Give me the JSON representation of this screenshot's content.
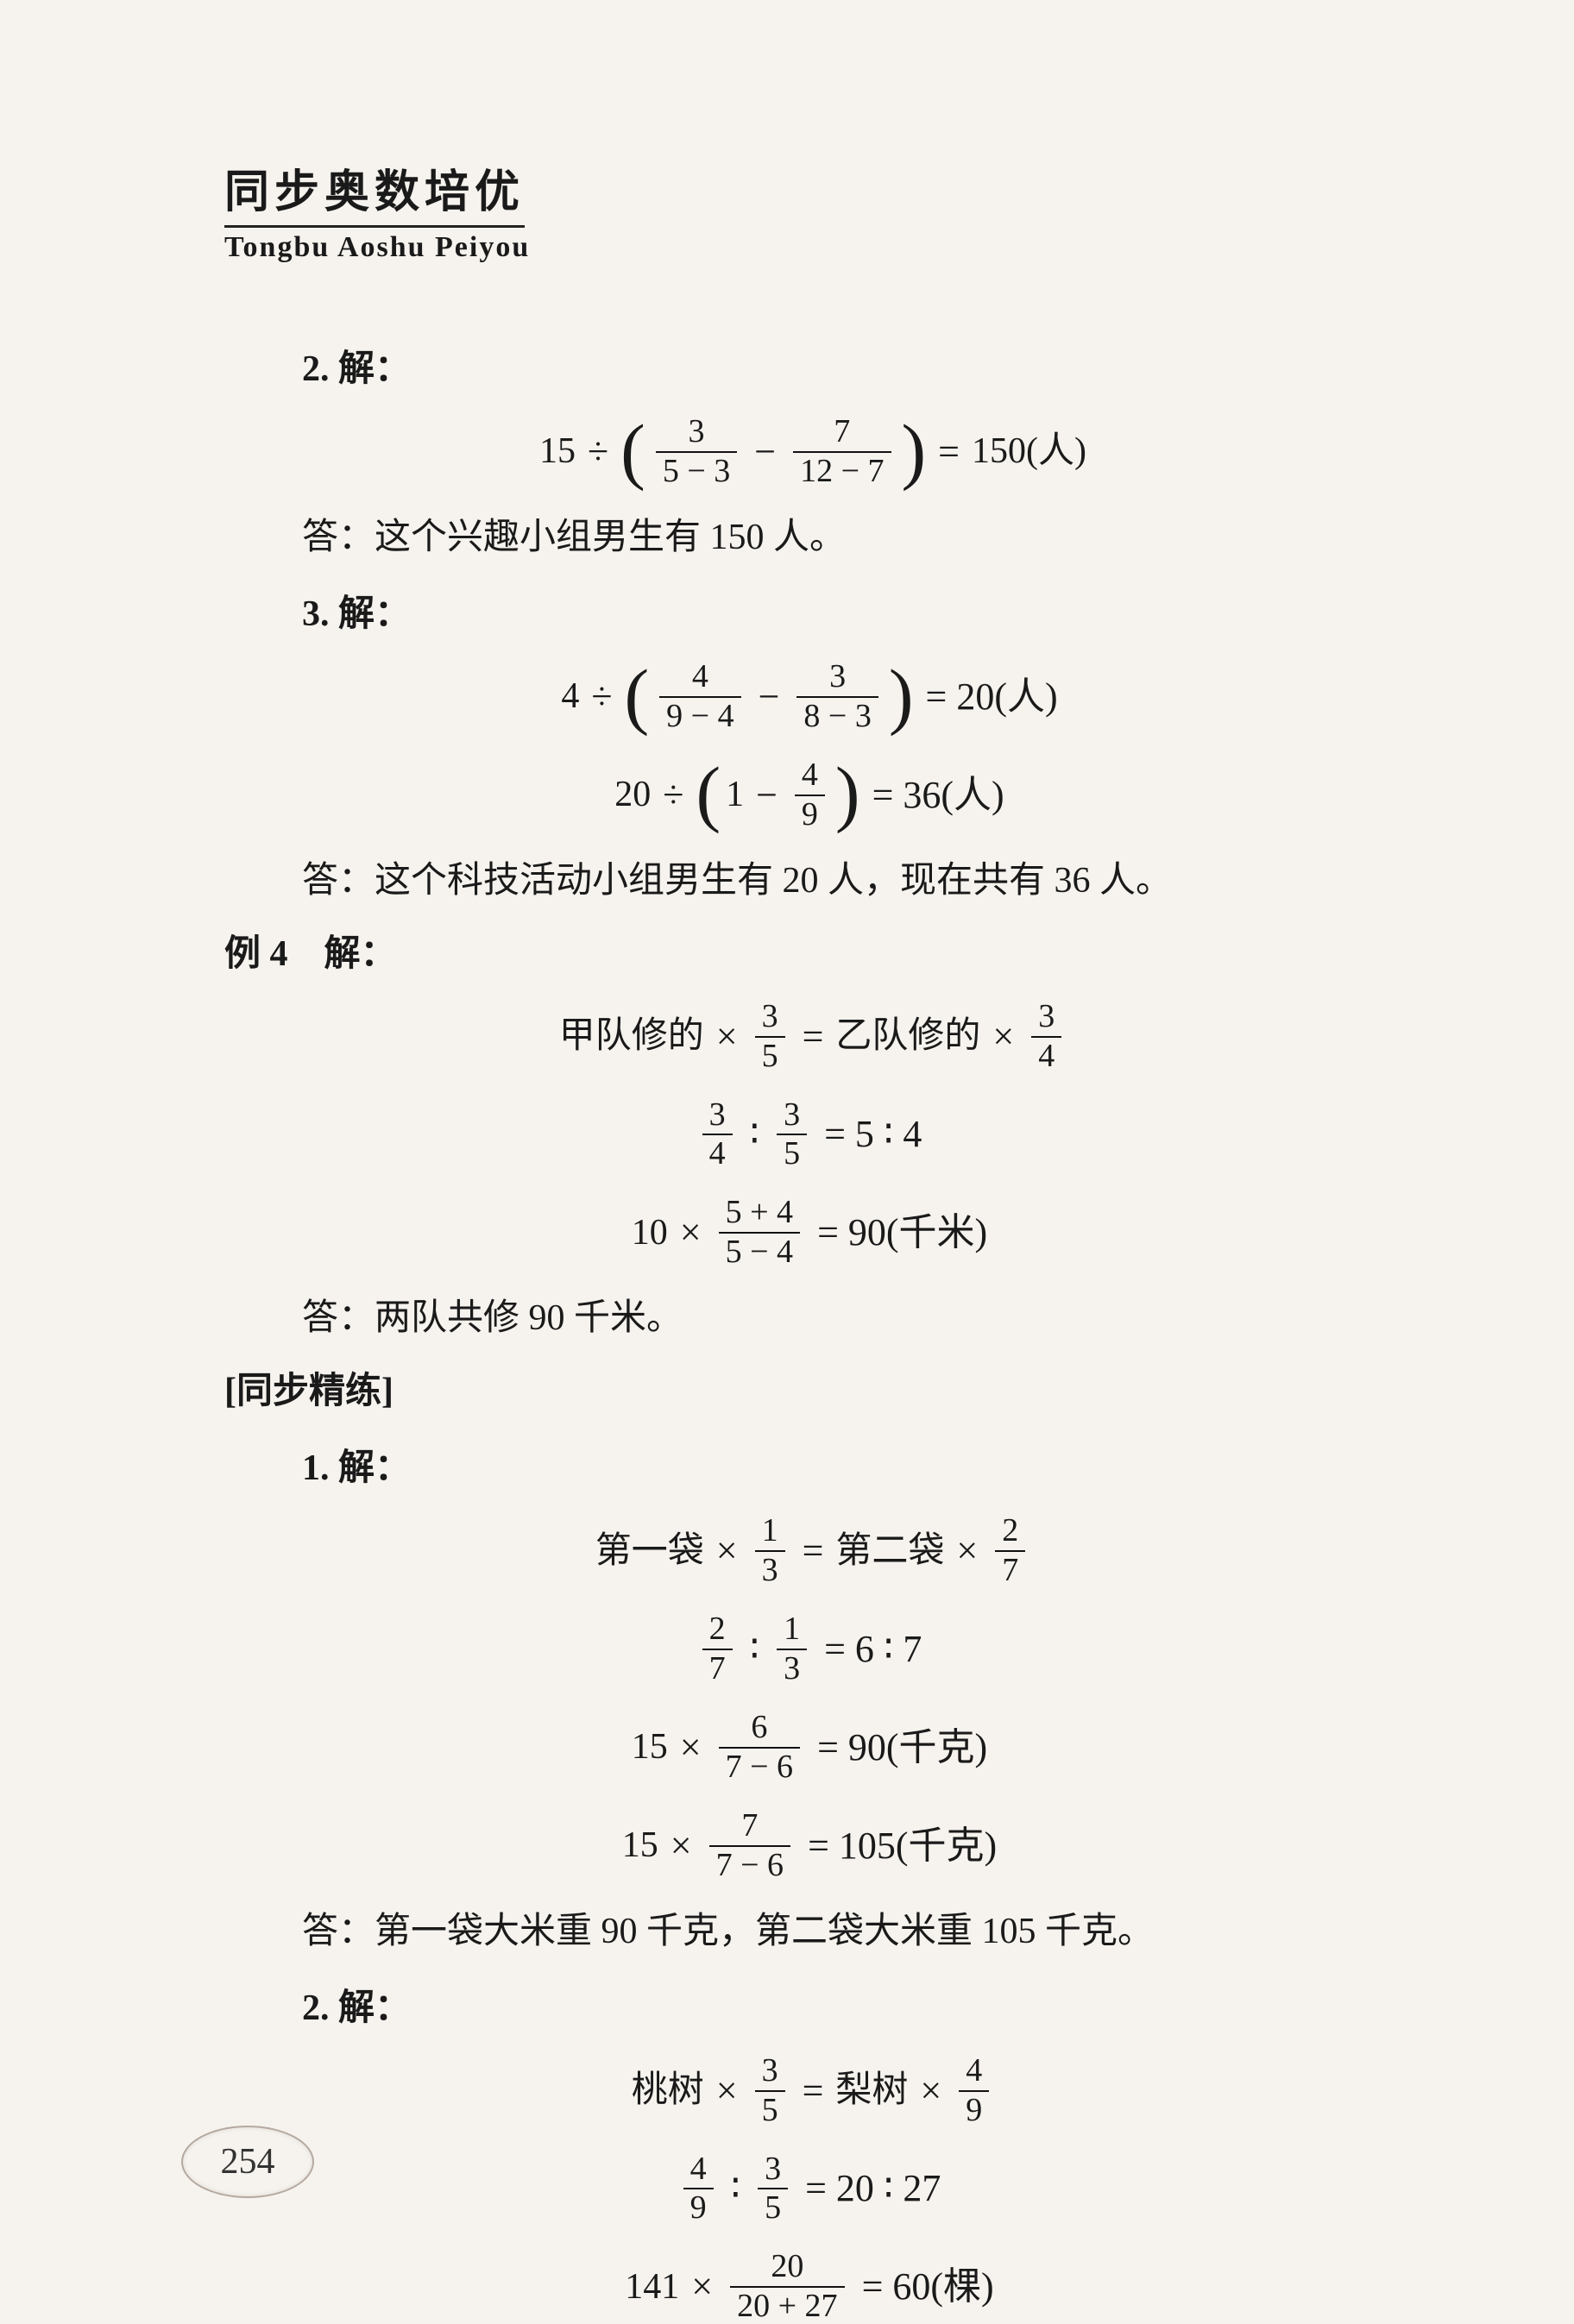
{
  "header": {
    "title_cn": "同步奥数培优",
    "title_pinyin": "Tongbu  Aoshu  Peiyou"
  },
  "page_number": "254",
  "items": [
    {
      "kind": "label",
      "class": "prob-label indent-1",
      "text": "2. 解："
    },
    {
      "kind": "math",
      "lines": [
        [
          {
            "t": "txt",
            "v": "15"
          },
          {
            "t": "op",
            "v": "÷"
          },
          {
            "t": "lparen"
          },
          {
            "t": "frac",
            "num": "3",
            "den": "5 − 3"
          },
          {
            "t": "op",
            "v": "−"
          },
          {
            "t": "frac",
            "num": "7",
            "den": "12 − 7"
          },
          {
            "t": "rparen"
          },
          {
            "t": "op",
            "v": "="
          },
          {
            "t": "txt",
            "v": "150(人)"
          }
        ]
      ]
    },
    {
      "kind": "label",
      "class": "answer-line",
      "text": "答：这个兴趣小组男生有 150 人。"
    },
    {
      "kind": "label",
      "class": "prob-label indent-1",
      "text": "3. 解："
    },
    {
      "kind": "math",
      "lines": [
        [
          {
            "t": "txt",
            "v": "4"
          },
          {
            "t": "op",
            "v": "÷"
          },
          {
            "t": "lparen"
          },
          {
            "t": "frac",
            "num": "4",
            "den": "9 − 4"
          },
          {
            "t": "op",
            "v": "−"
          },
          {
            "t": "frac",
            "num": "3",
            "den": "8 − 3"
          },
          {
            "t": "rparen"
          },
          {
            "t": "op",
            "v": "= 20(人)"
          }
        ],
        [
          {
            "t": "txt",
            "v": "20"
          },
          {
            "t": "op",
            "v": "÷"
          },
          {
            "t": "lparen"
          },
          {
            "t": "txt",
            "v": "1"
          },
          {
            "t": "op",
            "v": "−"
          },
          {
            "t": "frac",
            "num": "4",
            "den": "9"
          },
          {
            "t": "rparen"
          },
          {
            "t": "op",
            "v": "= 36(人)"
          }
        ]
      ]
    },
    {
      "kind": "label",
      "class": "answer-line",
      "text": "答：这个科技活动小组男生有 20 人，现在共有 36 人。"
    },
    {
      "kind": "label",
      "class": "section-label indent-0",
      "text": "例 4　解："
    },
    {
      "kind": "math",
      "lines": [
        [
          {
            "t": "txt",
            "v": "甲队修的"
          },
          {
            "t": "op",
            "v": "×"
          },
          {
            "t": "frac",
            "num": "3",
            "den": "5"
          },
          {
            "t": "op",
            "v": "="
          },
          {
            "t": "txt",
            "v": "乙队修的"
          },
          {
            "t": "op",
            "v": "×"
          },
          {
            "t": "frac",
            "num": "3",
            "den": "4"
          }
        ],
        [
          {
            "t": "frac",
            "num": "3",
            "den": "4"
          },
          {
            "t": "op",
            "v": "∶"
          },
          {
            "t": "frac",
            "num": "3",
            "den": "5"
          },
          {
            "t": "op",
            "v": "= 5 ∶ 4"
          }
        ],
        [
          {
            "t": "txt",
            "v": "10"
          },
          {
            "t": "op",
            "v": "×"
          },
          {
            "t": "frac",
            "num": "5 + 4",
            "den": "5 − 4"
          },
          {
            "t": "op",
            "v": "= 90(千米)"
          }
        ]
      ]
    },
    {
      "kind": "label",
      "class": "answer-line",
      "text": "答：两队共修 90 千米。"
    },
    {
      "kind": "label",
      "class": "section-label indent-0",
      "text": "[同步精练]"
    },
    {
      "kind": "label",
      "class": "prob-label indent-1",
      "text": "1. 解："
    },
    {
      "kind": "math",
      "lines": [
        [
          {
            "t": "txt",
            "v": "第一袋"
          },
          {
            "t": "op",
            "v": "×"
          },
          {
            "t": "frac",
            "num": "1",
            "den": "3"
          },
          {
            "t": "op",
            "v": "="
          },
          {
            "t": "txt",
            "v": "第二袋"
          },
          {
            "t": "op",
            "v": "×"
          },
          {
            "t": "frac",
            "num": "2",
            "den": "7"
          }
        ],
        [
          {
            "t": "frac",
            "num": "2",
            "den": "7"
          },
          {
            "t": "op",
            "v": "∶"
          },
          {
            "t": "frac",
            "num": "1",
            "den": "3"
          },
          {
            "t": "op",
            "v": "= 6 ∶ 7"
          }
        ],
        [
          {
            "t": "txt",
            "v": "15"
          },
          {
            "t": "op",
            "v": "×"
          },
          {
            "t": "frac",
            "num": "6",
            "den": "7 − 6"
          },
          {
            "t": "op",
            "v": "= 90(千克)"
          }
        ],
        [
          {
            "t": "txt",
            "v": "15"
          },
          {
            "t": "op",
            "v": "×"
          },
          {
            "t": "frac",
            "num": "7",
            "den": "7 − 6"
          },
          {
            "t": "op",
            "v": "= 105(千克)"
          }
        ]
      ]
    },
    {
      "kind": "label",
      "class": "answer-line",
      "text": "答：第一袋大米重 90 千克，第二袋大米重 105 千克。"
    },
    {
      "kind": "label",
      "class": "prob-label indent-1",
      "text": "2. 解："
    },
    {
      "kind": "math",
      "lines": [
        [
          {
            "t": "txt",
            "v": "桃树"
          },
          {
            "t": "op",
            "v": "×"
          },
          {
            "t": "frac",
            "num": "3",
            "den": "5"
          },
          {
            "t": "op",
            "v": "="
          },
          {
            "t": "txt",
            "v": "梨树"
          },
          {
            "t": "op",
            "v": "×"
          },
          {
            "t": "frac",
            "num": "4",
            "den": "9"
          }
        ],
        [
          {
            "t": "frac",
            "num": "4",
            "den": "9"
          },
          {
            "t": "op",
            "v": "∶"
          },
          {
            "t": "frac",
            "num": "3",
            "den": "5"
          },
          {
            "t": "op",
            "v": "= 20 ∶ 27"
          }
        ],
        [
          {
            "t": "txt",
            "v": "141"
          },
          {
            "t": "op",
            "v": "×"
          },
          {
            "t": "frac",
            "num": "20",
            "den": "20 + 27"
          },
          {
            "t": "op",
            "v": "= 60(棵)"
          }
        ]
      ]
    }
  ]
}
